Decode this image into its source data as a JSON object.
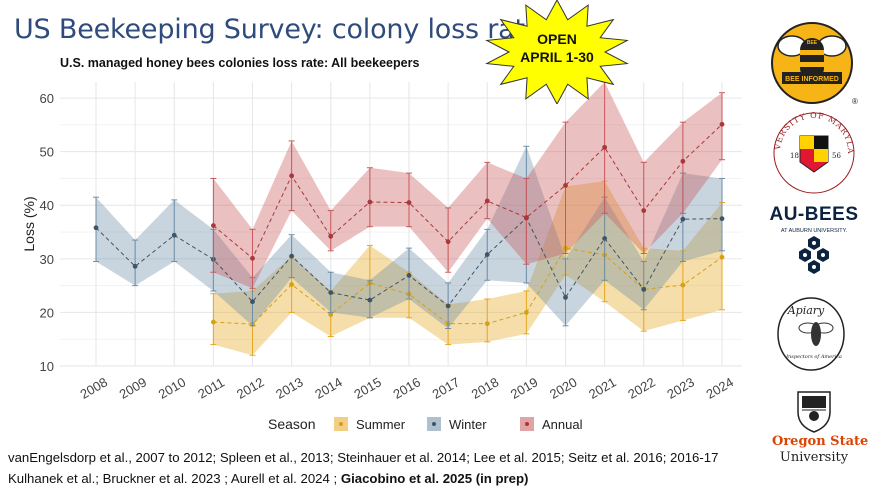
{
  "slide": {
    "title": "US Beekeeping Survey: colony loss rate",
    "badge_line1": "OPEN",
    "badge_line2": "APRIL 1-30",
    "citation_part1": "vanEngelsdorp et al., 2007 to 2012; Spleen et al., 2013; Steinhauer et al. 2014; Lee et al. 2015; Seitz et al. 2016; 2016-17 Kulhanek et al.; Bruckner et al. 2023 ; Aurell et al. 2024 ;",
    "citation_bold": "Giacobino et al. 2025 (in prep)"
  },
  "logos": {
    "bee_informed": "BEE INFORMED",
    "bee_top": "BEE",
    "umd_text": "UNIVERSITY OF MARYLAND",
    "umd_year_left": "18",
    "umd_year_right": "56",
    "au_text": "AU-BEES",
    "au_sub": "AT AUBURN UNIVERSITY.",
    "apiary_text": "Apiary",
    "apiary_sub": "Inspectors of America",
    "osu_name": "Oregon State",
    "osu_uni": "University",
    "registered": "®"
  },
  "colors": {
    "summer": "#e8a820",
    "winter": "#6e8ea8",
    "annual": "#c9595b",
    "summer_point": "#d4a017",
    "winter_point": "#3f5566",
    "annual_point": "#a8383b",
    "grid": "#e6e6e6",
    "title_blue": "#2f4b7c",
    "badge_fill": "#ffff00"
  },
  "chart_data": {
    "type": "line",
    "title": "U.S. managed honey bees colonies loss rate: All beekeepers",
    "xlabel": "",
    "ylabel": "Loss (%)",
    "ylim": [
      10,
      63
    ],
    "yticks": [
      10,
      20,
      30,
      40,
      50,
      60
    ],
    "categories": [
      "2008",
      "2009",
      "2010",
      "2011",
      "2012",
      "2013",
      "2014",
      "2015",
      "2016",
      "2017",
      "2018",
      "2019",
      "2020",
      "2021",
      "2022",
      "2023",
      "2024"
    ],
    "legend_title": "Season",
    "legend_position": "bottom",
    "grid": true,
    "series": [
      {
        "name": "Summer",
        "color_key": "summer",
        "values": [
          null,
          null,
          null,
          18.2,
          17.8,
          25.2,
          19.6,
          25.5,
          23.4,
          17.9,
          17.9,
          20.0,
          32.0,
          30.7,
          24.3,
          25.1,
          30.3
        ],
        "lower": [
          null,
          null,
          null,
          14.0,
          12.0,
          20.0,
          15.5,
          19.0,
          19.0,
          14.0,
          14.5,
          16.0,
          27.0,
          22.0,
          16.5,
          18.5,
          20.5
        ],
        "upper": [
          null,
          null,
          null,
          23.5,
          24.0,
          30.5,
          24.0,
          32.5,
          27.5,
          21.5,
          22.5,
          24.0,
          43.5,
          44.5,
          32.0,
          31.5,
          40.5
        ]
      },
      {
        "name": "Winter",
        "color_key": "winter",
        "values": [
          35.8,
          28.6,
          34.4,
          29.9,
          22.0,
          30.5,
          23.7,
          22.3,
          26.9,
          21.2,
          30.8,
          37.6,
          22.8,
          33.8,
          24.3,
          37.4,
          37.5
        ],
        "lower": [
          29.5,
          25.0,
          29.5,
          24.0,
          17.5,
          26.5,
          20.0,
          19.0,
          22.5,
          17.0,
          26.0,
          25.5,
          17.5,
          26.0,
          20.5,
          29.5,
          31.5
        ],
        "upper": [
          41.5,
          33.5,
          41.0,
          35.5,
          26.5,
          34.5,
          27.5,
          26.0,
          32.0,
          25.5,
          35.5,
          51.0,
          30.0,
          41.5,
          29.5,
          46.0,
          45.0
        ]
      },
      {
        "name": "Annual",
        "color_key": "annual",
        "values": [
          null,
          null,
          null,
          36.2,
          30.1,
          45.5,
          34.2,
          40.6,
          40.5,
          33.2,
          40.8,
          37.7,
          43.7,
          50.8,
          39.0,
          48.2,
          55.1
        ],
        "lower": [
          null,
          null,
          null,
          27.5,
          24.5,
          39.0,
          31.5,
          36.0,
          36.0,
          27.5,
          37.5,
          29.0,
          31.0,
          38.5,
          31.0,
          38.5,
          48.5
        ],
        "upper": [
          null,
          null,
          null,
          45.0,
          35.5,
          52.0,
          39.0,
          47.0,
          46.0,
          39.5,
          48.0,
          45.0,
          55.5,
          63.0,
          48.0,
          55.5,
          61.0
        ]
      }
    ]
  }
}
